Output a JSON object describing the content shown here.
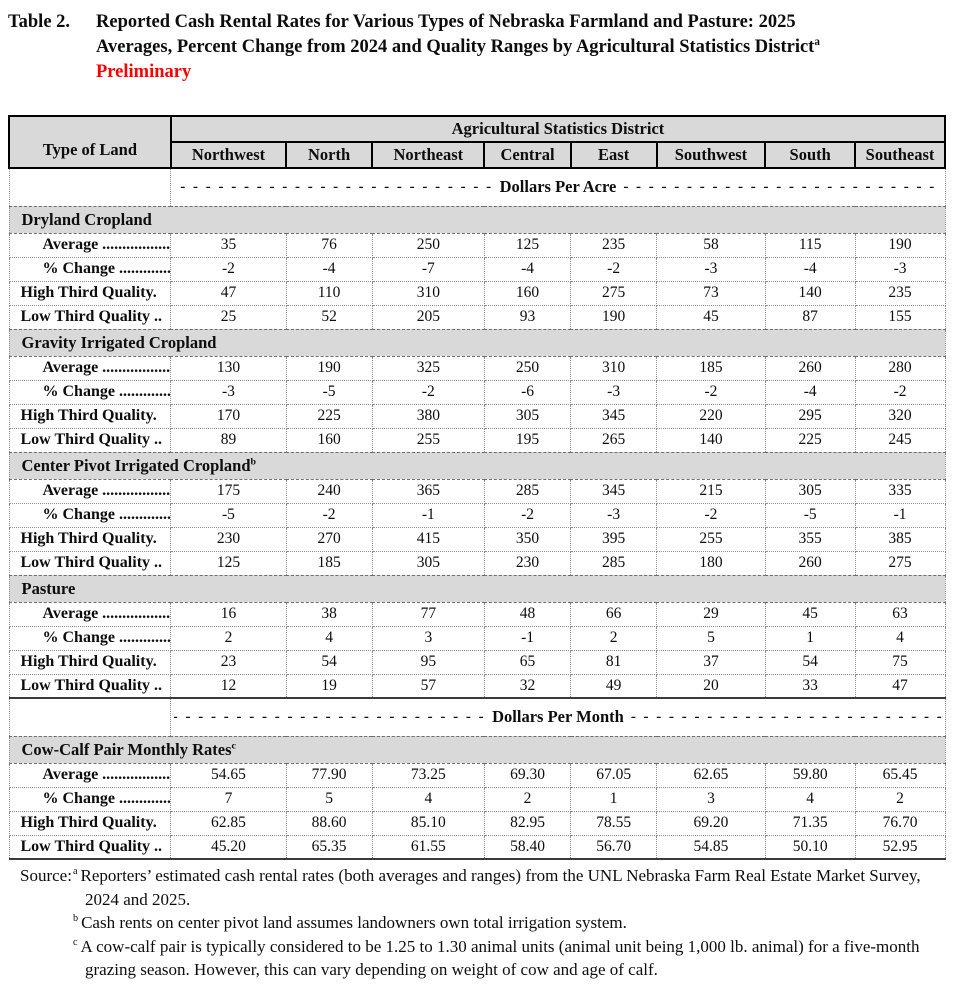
{
  "title": {
    "prefix": "Table 2.",
    "line1": "Reported Cash Rental Rates for Various Types of Nebraska Farmland and Pasture: 2025",
    "line2": "Averages, Percent Change from 2024 and Quality Ranges by Agricultural Statistics District",
    "line2_superscript": "a",
    "line3": "Preliminary"
  },
  "colors": {
    "preliminary_red": "#ff0000",
    "header_gray": "#d9d9d9"
  },
  "table": {
    "group_header": "Agricultural Statistics District",
    "corner_header": "Type of Land",
    "districts": [
      "Northwest",
      "North",
      "Northeast",
      "Central",
      "East",
      "Southwest",
      "South",
      "Southeast"
    ],
    "row_labels": [
      "Average .................",
      "% Change ..............",
      "High Third Quality.",
      "Low Third Quality .."
    ],
    "unit_rows": {
      "acre": {
        "label": "Dollars Per Acre",
        "dashes": "- - - - - - - - - - - - - - - - - - - - - - - - - -"
      },
      "month": {
        "label": "Dollars Per Month",
        "dashes": "- - - - - - - - - - - - - - - - - - - - - - - - - -"
      }
    },
    "sections": [
      {
        "title": "Dryland Cropland",
        "superscript": "",
        "unit_row_before": "acre",
        "heavy_bottom": false,
        "rows": [
          [
            "35",
            "76",
            "250",
            "125",
            "235",
            "58",
            "115",
            "190"
          ],
          [
            "-2",
            "-4",
            "-7",
            "-4",
            "-2",
            "-3",
            "-4",
            "-3"
          ],
          [
            "47",
            "110",
            "310",
            "160",
            "275",
            "73",
            "140",
            "235"
          ],
          [
            "25",
            "52",
            "205",
            "93",
            "190",
            "45",
            "87",
            "155"
          ]
        ]
      },
      {
        "title": "Gravity Irrigated Cropland",
        "superscript": "",
        "unit_row_before": null,
        "heavy_bottom": false,
        "rows": [
          [
            "130",
            "190",
            "325",
            "250",
            "310",
            "185",
            "260",
            "280"
          ],
          [
            "-3",
            "-5",
            "-2",
            "-6",
            "-3",
            "-2",
            "-4",
            "-2"
          ],
          [
            "170",
            "225",
            "380",
            "305",
            "345",
            "220",
            "295",
            "320"
          ],
          [
            "89",
            "160",
            "255",
            "195",
            "265",
            "140",
            "225",
            "245"
          ]
        ]
      },
      {
        "title": "Center Pivot Irrigated Cropland",
        "superscript": "b",
        "unit_row_before": null,
        "heavy_bottom": false,
        "rows": [
          [
            "175",
            "240",
            "365",
            "285",
            "345",
            "215",
            "305",
            "335"
          ],
          [
            "-5",
            "-2",
            "-1",
            "-2",
            "-3",
            "-2",
            "-5",
            "-1"
          ],
          [
            "230",
            "270",
            "415",
            "350",
            "395",
            "255",
            "355",
            "385"
          ],
          [
            "125",
            "185",
            "305",
            "230",
            "285",
            "180",
            "260",
            "275"
          ]
        ]
      },
      {
        "title": "Pasture",
        "superscript": "",
        "unit_row_before": null,
        "heavy_bottom": true,
        "rows": [
          [
            "16",
            "38",
            "77",
            "48",
            "66",
            "29",
            "45",
            "63"
          ],
          [
            "2",
            "4",
            "3",
            "-1",
            "2",
            "5",
            "1",
            "4"
          ],
          [
            "23",
            "54",
            "95",
            "65",
            "81",
            "37",
            "54",
            "75"
          ],
          [
            "12",
            "19",
            "57",
            "32",
            "49",
            "20",
            "33",
            "47"
          ]
        ]
      },
      {
        "title": "Cow-Calf Pair Monthly Rates",
        "superscript": "c",
        "unit_row_before": "month",
        "heavy_bottom": true,
        "rows": [
          [
            "54.65",
            "77.90",
            "73.25",
            "69.30",
            "67.05",
            "62.65",
            "59.80",
            "65.45"
          ],
          [
            "7",
            "5",
            "4",
            "2",
            "1",
            "3",
            "4",
            "2"
          ],
          [
            "62.85",
            "88.60",
            "85.10",
            "82.95",
            "78.55",
            "69.20",
            "71.35",
            "76.70"
          ],
          [
            "45.20",
            "65.35",
            "61.55",
            "58.40",
            "56.70",
            "54.85",
            "50.10",
            "52.95"
          ]
        ]
      }
    ]
  },
  "footnotes": {
    "source_label": "Source:",
    "notes": [
      {
        "sup": "a",
        "text": "Reporters’ estimated cash rental rates (both averages and ranges) from the UNL Nebraska Farm Real Estate Market Survey, 2024 and 2025."
      },
      {
        "sup": "b",
        "text": "Cash rents on center pivot land assumes landowners own total irrigation system."
      },
      {
        "sup": "c",
        "text": "A cow-calf pair is typically considered to be 1.25 to 1.30 animal units (animal unit being 1,000 lb. animal) for a five-month grazing season. However, this can vary depending on weight of cow and age of calf."
      }
    ]
  }
}
